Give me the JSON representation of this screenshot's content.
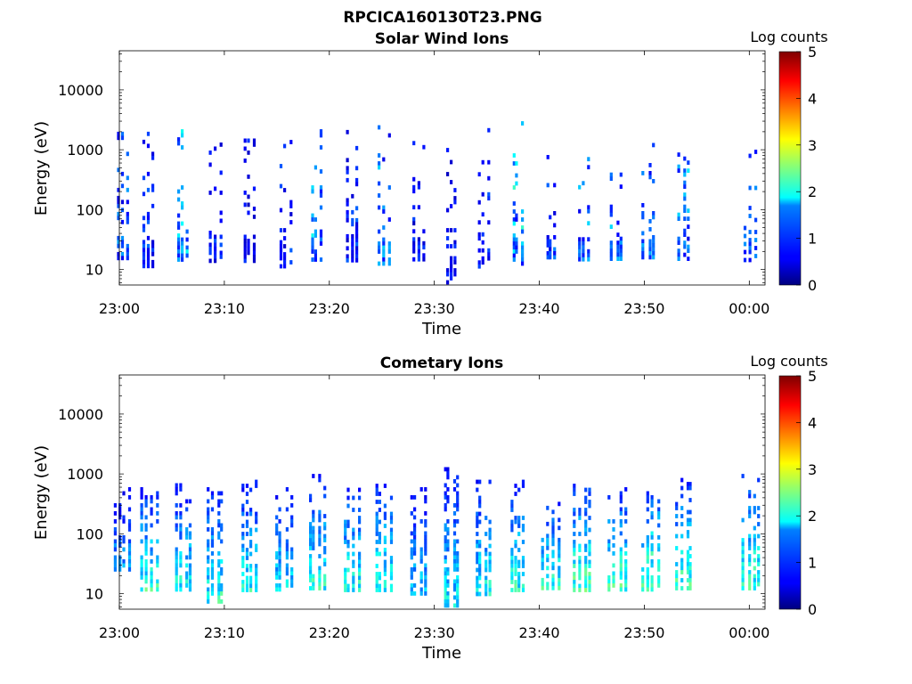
{
  "figure": {
    "title": "RPCICA160130T23.PNG"
  },
  "colors": {
    "axis": "#000000",
    "colormap": "jet"
  },
  "chart_data": [
    {
      "type": "heatmap",
      "title": "Solar Wind Ions",
      "xlabel": "Time",
      "ylabel": "Energy (eV)",
      "x_ticks": [
        "23:00",
        "23:10",
        "23:20",
        "23:30",
        "23:40",
        "23:50",
        "00:00"
      ],
      "x_range": [
        "23:00",
        "00:01.5"
      ],
      "y_scale": "log",
      "y_range": [
        5.5,
        45000
      ],
      "y_ticks": [
        "10",
        "100",
        "1000",
        "10000"
      ],
      "colorbar": {
        "label": "Log counts",
        "range": [
          0,
          5
        ],
        "ticks": [
          "0",
          "1",
          "2",
          "3",
          "4",
          "5"
        ]
      },
      "bursts": [
        {
          "t": "23:00.3",
          "e_low": 15,
          "e_high": 2000,
          "peak_log_counts": 1.7
        },
        {
          "t": "23:02.7",
          "e_low": 12,
          "e_high": 2000,
          "peak_log_counts": 1.3
        },
        {
          "t": "23:06.0",
          "e_low": 15,
          "e_high": 3000,
          "peak_log_counts": 2.1
        },
        {
          "t": "23:09.0",
          "e_low": 15,
          "e_high": 1800,
          "peak_log_counts": 1.3
        },
        {
          "t": "23:12.3",
          "e_low": 15,
          "e_high": 1800,
          "peak_log_counts": 1.0
        },
        {
          "t": "23:15.7",
          "e_low": 12,
          "e_high": 1700,
          "peak_log_counts": 1.2
        },
        {
          "t": "23:18.7",
          "e_low": 15,
          "e_high": 2200,
          "peak_log_counts": 2.0
        },
        {
          "t": "23:22.0",
          "e_low": 15,
          "e_high": 2500,
          "peak_log_counts": 1.3
        },
        {
          "t": "23:25.0",
          "e_low": 12,
          "e_high": 3500,
          "peak_log_counts": 1.9
        },
        {
          "t": "23:28.3",
          "e_low": 15,
          "e_high": 1400,
          "peak_log_counts": 1.2
        },
        {
          "t": "23:31.5",
          "e_low": 6,
          "e_high": 1700,
          "peak_log_counts": 1.0
        },
        {
          "t": "23:34.5",
          "e_low": 12,
          "e_high": 2300,
          "peak_log_counts": 1.2
        },
        {
          "t": "23:37.8",
          "e_low": 12,
          "e_high": 3500,
          "peak_log_counts": 2.3
        },
        {
          "t": "23:41.0",
          "e_low": 15,
          "e_high": 1300,
          "peak_log_counts": 1.4
        },
        {
          "t": "23:44.0",
          "e_low": 15,
          "e_high": 1200,
          "peak_log_counts": 1.8
        },
        {
          "t": "23:47.3",
          "e_low": 15,
          "e_high": 900,
          "peak_log_counts": 1.8
        },
        {
          "t": "23:50.3",
          "e_low": 15,
          "e_high": 1300,
          "peak_log_counts": 1.9
        },
        {
          "t": "23:53.7",
          "e_low": 15,
          "e_high": 900,
          "peak_log_counts": 1.9
        },
        {
          "t": "00:00.0",
          "e_low": 15,
          "e_high": 1000,
          "peak_log_counts": 1.8
        }
      ]
    },
    {
      "type": "heatmap",
      "title": "Cometary Ions",
      "xlabel": "Time",
      "ylabel": "Energy (eV)",
      "x_ticks": [
        "23:00",
        "23:10",
        "23:20",
        "23:30",
        "23:40",
        "23:50",
        "00:00"
      ],
      "x_range": [
        "23:00",
        "00:01.5"
      ],
      "y_scale": "log",
      "y_range": [
        5.5,
        45000
      ],
      "y_ticks": [
        "10",
        "100",
        "1000",
        "10000"
      ],
      "colorbar": {
        "label": "Log counts",
        "range": [
          0,
          5
        ],
        "ticks": [
          "0",
          "1",
          "2",
          "3",
          "4",
          "5"
        ]
      },
      "bursts": [
        {
          "t": "23:00.2",
          "e_low": 25,
          "e_high": 600,
          "peak_log_counts": 1.8
        },
        {
          "t": "23:02.7",
          "e_low": 12,
          "e_high": 600,
          "peak_log_counts": 2.6
        },
        {
          "t": "23:06.0",
          "e_low": 12,
          "e_high": 700,
          "peak_log_counts": 2.4
        },
        {
          "t": "23:09.0",
          "e_low": 8,
          "e_high": 600,
          "peak_log_counts": 2.5
        },
        {
          "t": "23:12.3",
          "e_low": 12,
          "e_high": 800,
          "peak_log_counts": 2.4
        },
        {
          "t": "23:15.5",
          "e_low": 12,
          "e_high": 700,
          "peak_log_counts": 2.2
        },
        {
          "t": "23:18.7",
          "e_low": 12,
          "e_high": 1000,
          "peak_log_counts": 2.5
        },
        {
          "t": "23:22.0",
          "e_low": 12,
          "e_high": 800,
          "peak_log_counts": 2.5
        },
        {
          "t": "23:25.0",
          "e_low": 12,
          "e_high": 800,
          "peak_log_counts": 2.6
        },
        {
          "t": "23:28.3",
          "e_low": 10,
          "e_high": 600,
          "peak_log_counts": 2.0
        },
        {
          "t": "23:31.5",
          "e_low": 6,
          "e_high": 1300,
          "peak_log_counts": 2.3
        },
        {
          "t": "23:34.5",
          "e_low": 10,
          "e_high": 800,
          "peak_log_counts": 2.4
        },
        {
          "t": "23:37.8",
          "e_low": 12,
          "e_high": 800,
          "peak_log_counts": 2.5
        },
        {
          "t": "23:41.0",
          "e_low": 12,
          "e_high": 400,
          "peak_log_counts": 2.6
        },
        {
          "t": "23:44.0",
          "e_low": 12,
          "e_high": 800,
          "peak_log_counts": 2.8
        },
        {
          "t": "23:47.3",
          "e_low": 12,
          "e_high": 600,
          "peak_log_counts": 2.8
        },
        {
          "t": "23:50.5",
          "e_low": 12,
          "e_high": 700,
          "peak_log_counts": 3.0
        },
        {
          "t": "23:53.7",
          "e_low": 12,
          "e_high": 1000,
          "peak_log_counts": 2.7
        },
        {
          "t": "00:00.0",
          "e_low": 12,
          "e_high": 1000,
          "peak_log_counts": 2.7
        }
      ]
    }
  ]
}
